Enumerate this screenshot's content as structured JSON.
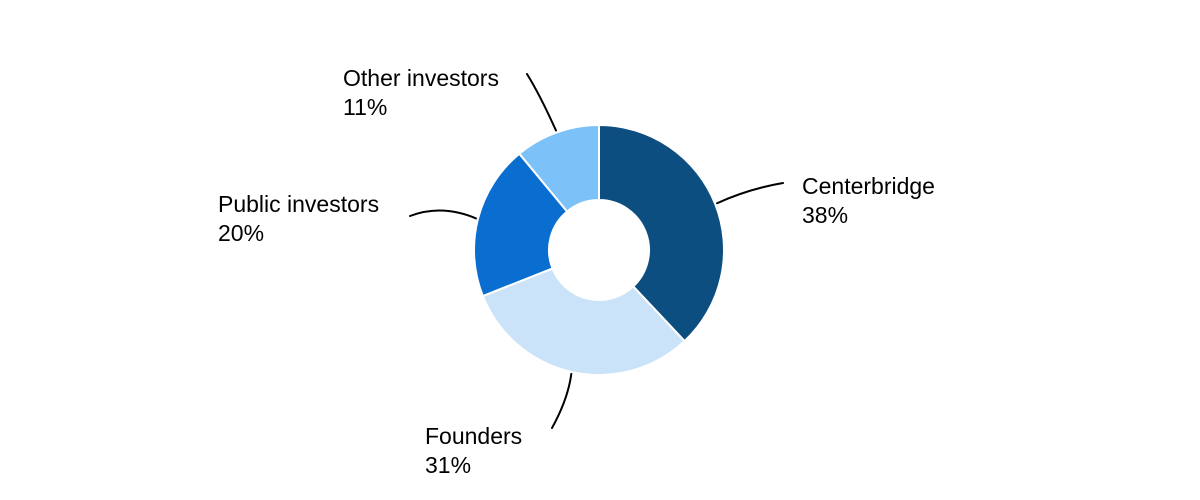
{
  "chart_data": {
    "type": "pie",
    "subtype": "donut",
    "title": "",
    "legend": "none",
    "label_style": "outside-callout",
    "background_color": "#ffffff",
    "leader_line_color": "#000000",
    "label_text_color": "#000000",
    "hole_ratio": 0.4,
    "unit": "%",
    "categories": [
      "Centerbridge",
      "Founders",
      "Public investors",
      "Other investors"
    ],
    "values": [
      38,
      31,
      20,
      11
    ],
    "slices": [
      {
        "label": "Centerbridge",
        "value": 38,
        "percent_label": "38%",
        "color": "#0d4e81"
      },
      {
        "label": "Founders",
        "value": 31,
        "percent_label": "31%",
        "color": "#cbe3f9"
      },
      {
        "label": "Public investors",
        "value": 20,
        "percent_label": "20%",
        "color": "#0a6ed0"
      },
      {
        "label": "Other investors",
        "value": 11,
        "percent_label": "11%",
        "color": "#7cc1f8"
      }
    ]
  }
}
